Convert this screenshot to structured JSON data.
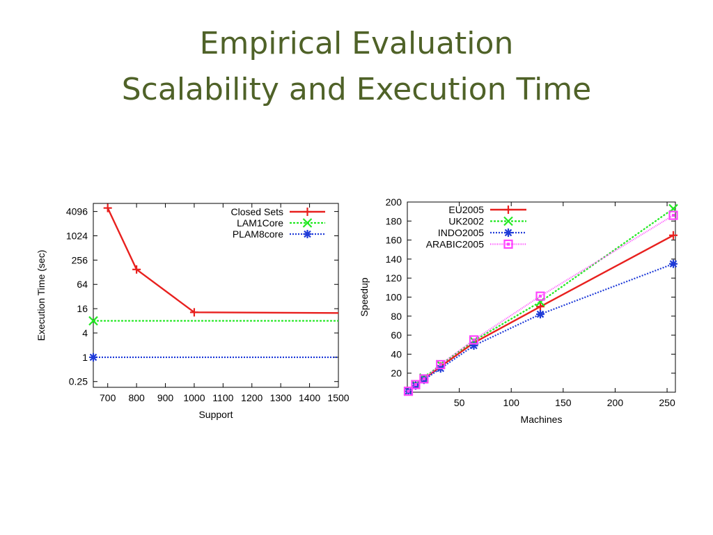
{
  "slide": {
    "title_line1": "Empirical Evaluation",
    "title_line2": "Scalability and Execution Time"
  },
  "chart_data": [
    {
      "type": "line",
      "xlabel": "Support",
      "ylabel": "Execution Time (sec)",
      "xlim": [
        650,
        1500
      ],
      "xticks": [
        700,
        800,
        900,
        1000,
        1100,
        1200,
        1300,
        1400,
        1500
      ],
      "ylim": [
        0.18,
        6500
      ],
      "yscale": "log2",
      "yticks": [
        0.25,
        1,
        4,
        16,
        64,
        256,
        1024,
        4096
      ],
      "ytick_labels": [
        "0.25",
        "1",
        "4",
        "16",
        "64",
        "256",
        "1024",
        "4096"
      ],
      "grid": false,
      "legend_position": "top-right",
      "series": [
        {
          "name": "Closed Sets",
          "color": "#e8201e",
          "marker": "plus",
          "dash": "",
          "x": [
            700,
            800,
            1000,
            1500
          ],
          "y": [
            5000,
            150,
            13,
            12.5
          ],
          "markers_at": [
            700,
            800,
            1000
          ]
        },
        {
          "name": "LAM1Core",
          "color": "#22e822",
          "marker": "x",
          "dash": "3,2",
          "x": [
            650,
            1500
          ],
          "y": [
            8,
            8
          ],
          "markers_at": [
            650
          ]
        },
        {
          "name": "PLAM8core",
          "color": "#1f3bd8",
          "marker": "star",
          "dash": "2,2",
          "x": [
            650,
            1500
          ],
          "y": [
            1,
            1
          ],
          "markers_at": [
            650
          ]
        }
      ]
    },
    {
      "type": "line",
      "xlabel": "Machines",
      "ylabel": "Speedup",
      "xlim": [
        0,
        258
      ],
      "xticks": [
        50,
        100,
        150,
        200,
        250
      ],
      "ylim": [
        0,
        200
      ],
      "yticks": [
        20,
        40,
        60,
        80,
        100,
        120,
        140,
        160,
        180,
        200
      ],
      "grid": false,
      "legend_position": "top-left",
      "series": [
        {
          "name": "EU2005",
          "color": "#e8201e",
          "marker": "plus",
          "dash": "",
          "x": [
            1,
            8,
            16,
            32,
            64,
            128,
            256
          ],
          "y": [
            1,
            7,
            14,
            27,
            52,
            90,
            165
          ]
        },
        {
          "name": "UK2002",
          "color": "#22e822",
          "marker": "x",
          "dash": "3,2",
          "x": [
            1,
            8,
            16,
            32,
            64,
            128,
            256
          ],
          "y": [
            1,
            8,
            15,
            29,
            54,
            95,
            193
          ]
        },
        {
          "name": "INDO2005",
          "color": "#1f3bd8",
          "marker": "star",
          "dash": "2,2",
          "x": [
            1,
            8,
            16,
            32,
            64,
            128,
            256
          ],
          "y": [
            1,
            7,
            13,
            25,
            49,
            82,
            135
          ]
        },
        {
          "name": "ARABIC2005",
          "color": "#ff44ff",
          "marker": "box",
          "dash": "1,1.5",
          "x": [
            1,
            8,
            16,
            32,
            64,
            128,
            256
          ],
          "y": [
            1,
            8,
            14,
            29,
            55,
            101,
            186
          ]
        }
      ]
    }
  ]
}
